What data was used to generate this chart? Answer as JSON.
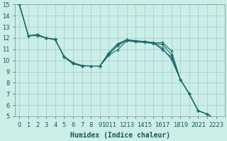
{
  "xlabel": "Humidex (Indice chaleur)",
  "bg_color": "#cceee8",
  "grid_color": "#99cccc",
  "line_color": "#1a6b6b",
  "marker": "+",
  "xlim": [
    -0.5,
    23
  ],
  "ylim": [
    5,
    15
  ],
  "xtick_labels": [
    "0",
    "1",
    "2",
    "3",
    "4",
    "5",
    "6",
    "7",
    "8",
    "9",
    "1011",
    "1213",
    "1415",
    "1617",
    "1819",
    "2021",
    "2223"
  ],
  "yticks": [
    5,
    6,
    7,
    8,
    9,
    10,
    11,
    12,
    13,
    14,
    15
  ],
  "series": [
    {
      "x": [
        0,
        1,
        2,
        3,
        4,
        5,
        6,
        7,
        8,
        9,
        10,
        11,
        12,
        13,
        14,
        15,
        16,
        17,
        18,
        19,
        20,
        21,
        22
      ],
      "y": [
        15.0,
        12.2,
        12.2,
        12.0,
        11.9,
        10.3,
        9.7,
        9.5,
        9.5,
        9.5,
        10.45,
        10.95,
        11.75,
        11.65,
        11.6,
        11.5,
        11.45,
        10.5,
        8.3,
        7.0,
        5.5,
        5.2,
        4.7
      ]
    },
    {
      "x": [
        0,
        1,
        2,
        3,
        4,
        5,
        6,
        7,
        8,
        9,
        10,
        11,
        12,
        13,
        14,
        15,
        16,
        17,
        18,
        19,
        20,
        21,
        22
      ],
      "y": [
        15.0,
        12.2,
        12.3,
        12.0,
        11.85,
        10.35,
        9.75,
        9.5,
        9.5,
        9.5,
        10.6,
        11.3,
        11.8,
        11.7,
        11.65,
        11.55,
        11.6,
        10.85,
        8.3,
        7.0,
        5.5,
        5.2,
        4.7
      ]
    },
    {
      "x": [
        0,
        1,
        2,
        3,
        4,
        5,
        6,
        7,
        8,
        9,
        10,
        11,
        12,
        13,
        14,
        15,
        16,
        17,
        18,
        19,
        20,
        21,
        22
      ],
      "y": [
        15.0,
        12.2,
        12.3,
        12.0,
        11.85,
        10.35,
        9.8,
        9.55,
        9.5,
        9.5,
        10.7,
        11.5,
        11.85,
        11.75,
        11.7,
        11.6,
        11.1,
        10.1,
        8.3,
        7.0,
        5.5,
        5.2,
        4.7
      ]
    },
    {
      "x": [
        0,
        1,
        2,
        3,
        4,
        5,
        6,
        7,
        8,
        9,
        10,
        11,
        12,
        13,
        14,
        15,
        16,
        17,
        18,
        19,
        20,
        21,
        22
      ],
      "y": [
        15.0,
        12.2,
        12.3,
        12.0,
        11.85,
        10.3,
        9.7,
        9.5,
        9.5,
        9.5,
        10.5,
        11.4,
        11.85,
        11.75,
        11.65,
        11.55,
        10.95,
        10.3,
        8.3,
        7.0,
        5.5,
        5.2,
        4.7
      ]
    }
  ]
}
